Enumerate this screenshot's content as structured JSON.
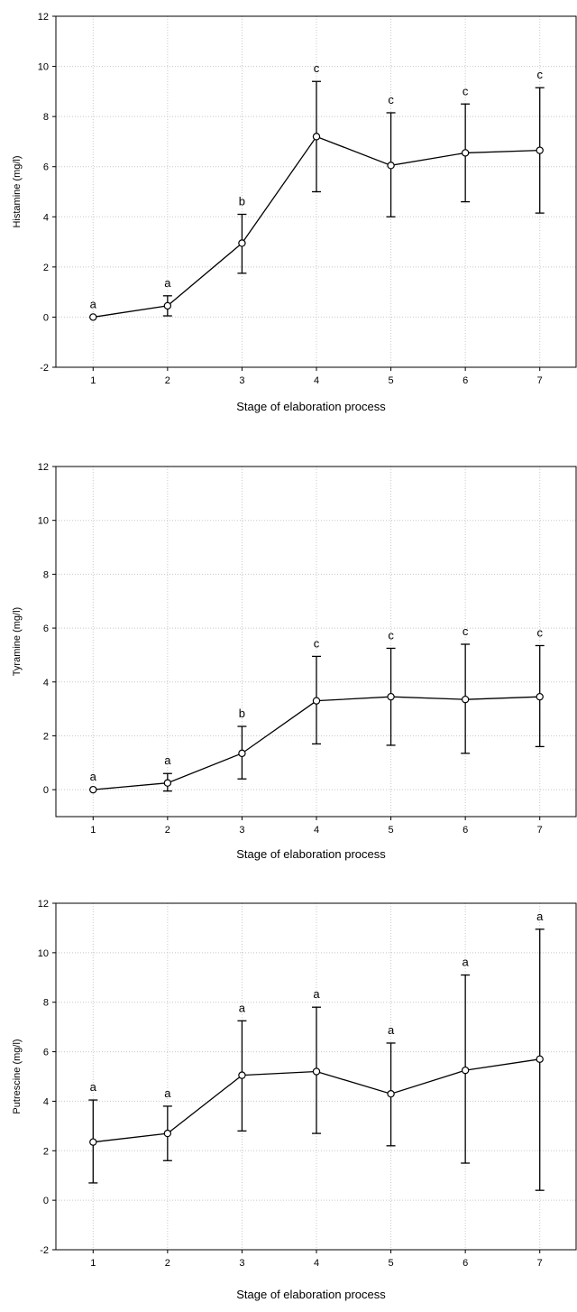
{
  "chart_data": [
    {
      "type": "line",
      "xlabel": "Stage of elaboration process",
      "ylabel": "Histamine (mg/l)",
      "x": [
        1,
        2,
        3,
        4,
        5,
        6,
        7
      ],
      "xlim": [
        0.5,
        7.5
      ],
      "ylim": [
        -2,
        12
      ],
      "yticks": [
        -2,
        0,
        2,
        4,
        6,
        8,
        10,
        12
      ],
      "grid": true,
      "series": [
        {
          "values": [
            0,
            0.45,
            2.95,
            7.2,
            6.05,
            6.55,
            6.65
          ],
          "err_low": [
            0,
            0.05,
            1.75,
            5.0,
            4.0,
            4.6,
            4.15
          ],
          "err_high": [
            0,
            0.85,
            4.1,
            9.4,
            8.15,
            8.5,
            9.15
          ],
          "letters": [
            "a",
            "a",
            "b",
            "c",
            "c",
            "c",
            "c"
          ]
        }
      ]
    },
    {
      "type": "line",
      "xlabel": "Stage of elaboration process",
      "ylabel": "Tyramine (mg/l)",
      "x": [
        1,
        2,
        3,
        4,
        5,
        6,
        7
      ],
      "xlim": [
        0.5,
        7.5
      ],
      "ylim": [
        -1,
        12
      ],
      "yticks": [
        0,
        2,
        4,
        6,
        8,
        10,
        12
      ],
      "grid": true,
      "series": [
        {
          "values": [
            0,
            0.25,
            1.35,
            3.3,
            3.45,
            3.35,
            3.45
          ],
          "err_low": [
            0,
            -0.05,
            0.4,
            1.7,
            1.65,
            1.35,
            1.6
          ],
          "err_high": [
            0,
            0.6,
            2.35,
            4.95,
            5.25,
            5.4,
            5.35
          ],
          "letters": [
            "a",
            "a",
            "b",
            "c",
            "c",
            "c",
            "c"
          ]
        }
      ]
    },
    {
      "type": "line",
      "xlabel": "Stage of elaboration process",
      "ylabel": "Putrescine (mg/l)",
      "x": [
        1,
        2,
        3,
        4,
        5,
        6,
        7
      ],
      "xlim": [
        0.5,
        7.5
      ],
      "ylim": [
        -2,
        12
      ],
      "yticks": [
        -2,
        0,
        2,
        4,
        6,
        8,
        10,
        12
      ],
      "grid": true,
      "series": [
        {
          "values": [
            2.35,
            2.7,
            5.05,
            5.2,
            4.3,
            5.25,
            5.7
          ],
          "err_low": [
            0.7,
            1.6,
            2.8,
            2.7,
            2.2,
            1.5,
            0.4
          ],
          "err_high": [
            4.05,
            3.8,
            7.25,
            7.8,
            6.35,
            9.1,
            10.95
          ],
          "letters": [
            "a",
            "a",
            "a",
            "a",
            "a",
            "a",
            "a"
          ]
        }
      ]
    }
  ]
}
